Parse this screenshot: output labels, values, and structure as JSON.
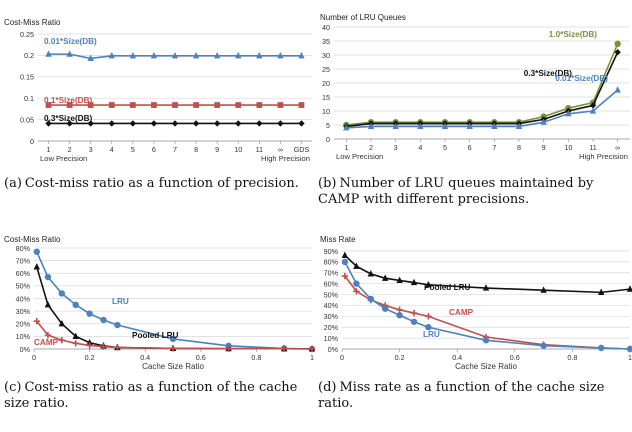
{
  "chart_data": [
    {
      "type": "line",
      "id": "a",
      "title": "Cost-Miss Ratio",
      "categories": [
        "1",
        "2",
        "3",
        "4",
        "5",
        "6",
        "7",
        "8",
        "9",
        "10",
        "11",
        "∞",
        "GDS"
      ],
      "xlabel_left": "Low Precision",
      "xlabel_right": "High Precision",
      "ylim": [
        0,
        0.25
      ],
      "yticks": [
        "0",
        "0.05",
        "0.1",
        "0.15",
        "0.2",
        "0.25"
      ],
      "series": [
        {
          "name": "0.01*Size(DB)",
          "color": "#4f81bd",
          "marker": "triangle",
          "values": [
            0.203,
            0.203,
            0.193,
            0.199,
            0.199,
            0.199,
            0.199,
            0.199,
            0.199,
            0.199,
            0.199,
            0.199,
            0.199
          ]
        },
        {
          "name": "0.1*Size(DB)",
          "color": "#c0504d",
          "marker": "square",
          "values": [
            0.084,
            0.084,
            0.084,
            0.084,
            0.084,
            0.084,
            0.084,
            0.084,
            0.084,
            0.084,
            0.084,
            0.084,
            0.084
          ]
        },
        {
          "name": "0.3*Size(DB)",
          "color": "#111111",
          "marker": "diamond",
          "values": [
            0.041,
            0.041,
            0.041,
            0.041,
            0.041,
            0.041,
            0.041,
            0.041,
            0.041,
            0.041,
            0.041,
            0.041,
            0.041
          ]
        }
      ]
    },
    {
      "type": "line",
      "id": "b",
      "title": "Number of LRU Queues",
      "categories": [
        "1",
        "2",
        "3",
        "4",
        "5",
        "6",
        "7",
        "8",
        "9",
        "10",
        "11",
        "∞"
      ],
      "xlabel_left": "Low Precision",
      "xlabel_right": "High Precision",
      "ylim": [
        0,
        40
      ],
      "yticks": [
        "0",
        "5",
        "10",
        "15",
        "20",
        "25",
        "30",
        "35",
        "40"
      ],
      "series": [
        {
          "name": "1.0*Size(DB)",
          "color": "#77933c",
          "marker": "circle",
          "values": [
            5,
            6,
            6,
            6,
            6,
            6,
            6,
            6,
            8,
            11,
            13,
            34
          ]
        },
        {
          "name": "0.3*Size(DB)",
          "color": "#111111",
          "marker": "diamond",
          "values": [
            4.5,
            5.5,
            5.5,
            5.5,
            5.5,
            5.5,
            5.5,
            5.5,
            7,
            10,
            12,
            31
          ]
        },
        {
          "name": "0.01*Size(DB)",
          "color": "#4f81bd",
          "marker": "triangle",
          "values": [
            4,
            4.5,
            4.5,
            4.5,
            4.5,
            4.5,
            4.5,
            4.5,
            6,
            9,
            10,
            17.5
          ]
        }
      ]
    },
    {
      "type": "line",
      "id": "c",
      "title": "Cost-Miss Ratio",
      "xlabel": "Cache Size Ratio",
      "xlim": [
        0,
        1
      ],
      "ylim": [
        0,
        0.8
      ],
      "xticks": [
        "0",
        "0.2",
        "0.4",
        "0.6",
        "0.8",
        "1"
      ],
      "yticks": [
        "0%",
        "10%",
        "20%",
        "30%",
        "40%",
        "50%",
        "60%",
        "70%",
        "80%"
      ],
      "series": [
        {
          "name": "LRU",
          "color": "#4f81bd",
          "marker": "circle",
          "x": [
            0.01,
            0.05,
            0.1,
            0.15,
            0.2,
            0.25,
            0.3,
            0.5,
            0.7,
            0.9,
            1.0
          ],
          "values": [
            0.77,
            0.57,
            0.44,
            0.35,
            0.28,
            0.23,
            0.19,
            0.08,
            0.025,
            0.005,
            0.0
          ]
        },
        {
          "name": "Pooled LRU",
          "color": "#111111",
          "marker": "triangle",
          "x": [
            0.01,
            0.05,
            0.1,
            0.15,
            0.2,
            0.25,
            0.3,
            0.5,
            0.7,
            0.9,
            1.0
          ],
          "values": [
            0.65,
            0.35,
            0.2,
            0.1,
            0.05,
            0.025,
            0.012,
            0.005,
            0.003,
            0.002,
            0.001
          ]
        },
        {
          "name": "CAMP",
          "color": "#c0504d",
          "marker": "plus",
          "x": [
            0.01,
            0.05,
            0.1,
            0.15,
            0.2,
            0.25,
            0.3,
            0.5,
            0.7,
            0.9,
            1.0
          ],
          "values": [
            0.22,
            0.11,
            0.07,
            0.045,
            0.028,
            0.018,
            0.012,
            0.005,
            0.003,
            0.002,
            0.001
          ]
        }
      ]
    },
    {
      "type": "line",
      "id": "d",
      "title": "Miss Rate",
      "xlabel": "Cache Size Ratio",
      "xlim": [
        0,
        1
      ],
      "ylim": [
        0,
        0.9
      ],
      "xticks": [
        "0",
        "0.2",
        "0.4",
        "0.6",
        "0.8",
        "1"
      ],
      "yticks": [
        "0%",
        "10%",
        "20%",
        "30%",
        "40%",
        "50%",
        "60%",
        "70%",
        "80%",
        "90%"
      ],
      "series": [
        {
          "name": "Pooled LRU",
          "color": "#111111",
          "marker": "triangle",
          "x": [
            0.01,
            0.05,
            0.1,
            0.15,
            0.2,
            0.25,
            0.3,
            0.5,
            0.7,
            0.9,
            1.0
          ],
          "values": [
            0.86,
            0.76,
            0.69,
            0.65,
            0.63,
            0.61,
            0.59,
            0.56,
            0.54,
            0.52,
            0.55
          ]
        },
        {
          "name": "CAMP",
          "color": "#c0504d",
          "marker": "plus",
          "x": [
            0.01,
            0.05,
            0.1,
            0.15,
            0.2,
            0.25,
            0.3,
            0.5,
            0.7,
            0.9,
            1.0
          ],
          "values": [
            0.67,
            0.53,
            0.45,
            0.4,
            0.36,
            0.33,
            0.3,
            0.11,
            0.04,
            0.01,
            0.0
          ]
        },
        {
          "name": "LRU",
          "color": "#4f81bd",
          "marker": "circle",
          "x": [
            0.01,
            0.05,
            0.1,
            0.15,
            0.2,
            0.25,
            0.3,
            0.5,
            0.7,
            0.9,
            1.0
          ],
          "values": [
            0.8,
            0.6,
            0.46,
            0.37,
            0.31,
            0.25,
            0.2,
            0.08,
            0.03,
            0.01,
            0.0
          ]
        }
      ]
    }
  ],
  "captions": [
    {
      "prefix": "(a)",
      "text": "Cost-miss ratio as a function of precision."
    },
    {
      "prefix": "(b)",
      "text": "Number of LRU queues maintained by CAMP with different precisions."
    },
    {
      "prefix": "(c)",
      "text": "Cost-miss ratio as a function of the cache size ratio."
    },
    {
      "prefix": "(d)",
      "text": "Miss rate as a function of the cache size ratio."
    }
  ]
}
